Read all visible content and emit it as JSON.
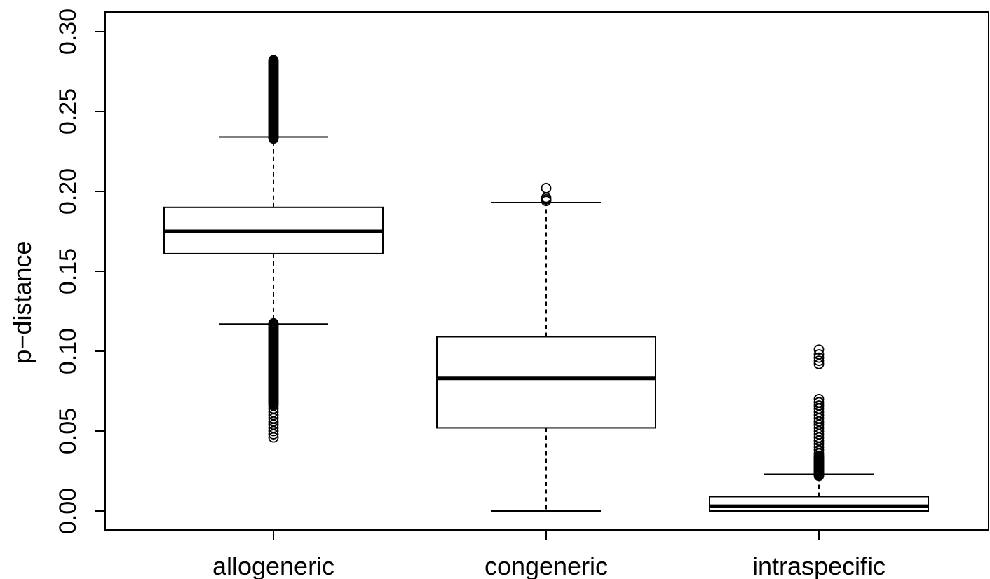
{
  "chart_data": {
    "type": "boxplot",
    "title": "",
    "xlabel": "",
    "ylabel": "p−distance",
    "ylim": [
      0.0,
      0.3
    ],
    "y_ticks": [
      0.0,
      0.05,
      0.1,
      0.15,
      0.2,
      0.25,
      0.3
    ],
    "y_tick_labels": [
      "0.00",
      "0.05",
      "0.10",
      "0.15",
      "0.20",
      "0.25",
      "0.30"
    ],
    "categories": [
      "allogeneric",
      "congeneric",
      "intraspecific"
    ],
    "boxes": [
      {
        "name": "allogeneric",
        "whisker_low": 0.117,
        "q1": 0.161,
        "median": 0.175,
        "q3": 0.19,
        "whisker_high": 0.234,
        "outliers_low_range": [
          0.046,
          0.118
        ],
        "outliers_high_range": [
          0.233,
          0.282
        ],
        "outliers_low_dense_to": 0.067,
        "outliers_low_sparse": [
          0.046,
          0.048,
          0.05,
          0.052,
          0.054,
          0.056,
          0.058,
          0.06,
          0.062,
          0.064,
          0.066
        ]
      },
      {
        "name": "congeneric",
        "whisker_low": 0.0,
        "q1": 0.052,
        "median": 0.083,
        "q3": 0.109,
        "whisker_high": 0.193,
        "outliers": [
          0.194,
          0.195,
          0.196,
          0.202
        ]
      },
      {
        "name": "intraspecific",
        "whisker_low": 0.0,
        "q1": 0.0,
        "median": 0.003,
        "q3": 0.009,
        "whisker_high": 0.023,
        "outliers_dense_range": [
          0.022,
          0.035
        ],
        "outliers": [
          0.036,
          0.038,
          0.04,
          0.042,
          0.044,
          0.046,
          0.048,
          0.05,
          0.052,
          0.054,
          0.056,
          0.058,
          0.06,
          0.062,
          0.064,
          0.066,
          0.068,
          0.07,
          0.092,
          0.094,
          0.096,
          0.098,
          0.101
        ]
      }
    ]
  }
}
